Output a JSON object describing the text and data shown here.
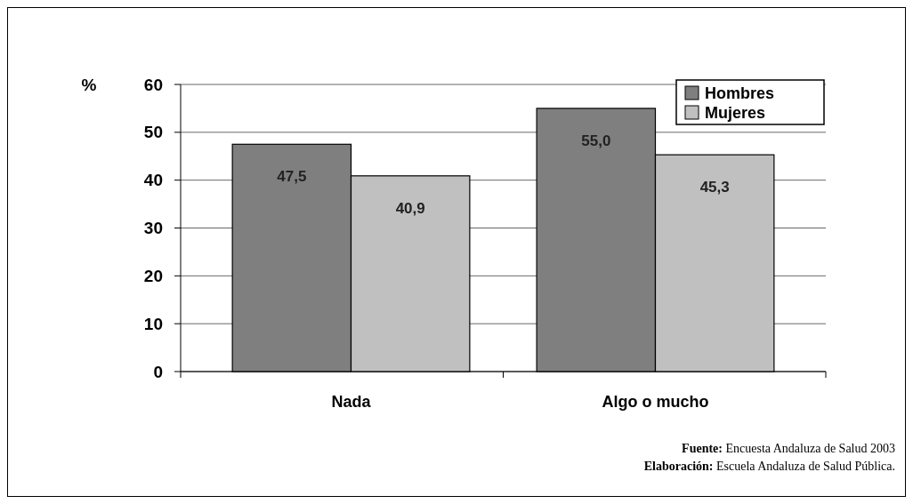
{
  "chart_data": {
    "type": "bar",
    "categories": [
      "Nada",
      "Algo o mucho"
    ],
    "series": [
      {
        "name": "Hombres",
        "color": "#7f7f7f",
        "values": [
          47.5,
          55.0
        ],
        "value_labels": [
          "47,5",
          "55,0"
        ]
      },
      {
        "name": "Mujeres",
        "color": "#c0c0c0",
        "values": [
          40.9,
          45.3
        ],
        "value_labels": [
          "40,9",
          "45,3"
        ]
      }
    ],
    "ylabel": "%",
    "ylim": [
      0,
      60
    ],
    "yticks": [
      0,
      10,
      20,
      30,
      40,
      50,
      60
    ],
    "grid": "y",
    "legend": "top right",
    "annotations": [
      "Fuente: Encuesta Andaluza de Salud 2003",
      "Elaboración: Escuela Andaluza de Salud Pública."
    ]
  }
}
